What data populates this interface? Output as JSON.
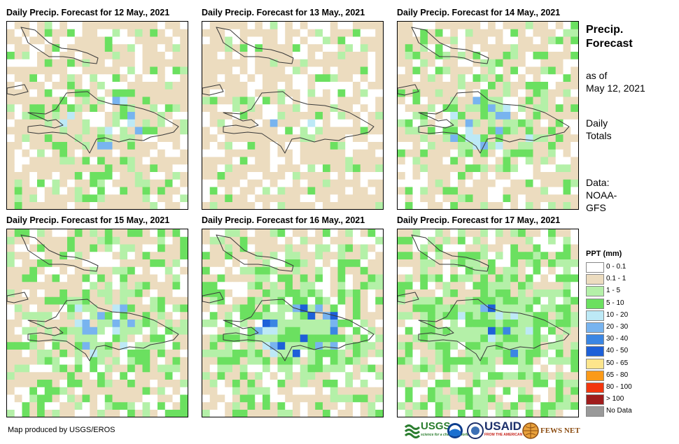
{
  "panels": [
    {
      "title": "Daily Precip. Forecast for 12 May., 2021",
      "seed": 11,
      "wet": 0.3,
      "center": 0.35
    },
    {
      "title": "Daily Precip. Forecast for 13 May., 2021",
      "seed": 23,
      "wet": 0.18,
      "center": 0.25
    },
    {
      "title": "Daily Precip. Forecast for 14 May., 2021",
      "seed": 37,
      "wet": 0.42,
      "center": 0.5
    },
    {
      "title": "Daily Precip. Forecast for 15 May., 2021",
      "seed": 41,
      "wet": 0.55,
      "center": 0.7
    },
    {
      "title": "Daily Precip. Forecast for 16 May., 2021",
      "seed": 53,
      "wet": 0.7,
      "center": 0.85
    },
    {
      "title": "Daily Precip. Forecast for 17 May., 2021",
      "seed": 67,
      "wet": 0.85,
      "center": 0.95
    }
  ],
  "side": {
    "title_line1": "Precip.",
    "title_line2": "Forecast",
    "asof_line1": "as of",
    "asof_line2": "May 12, 2021",
    "daily_line1": "Daily",
    "daily_line2": "Totals",
    "data_line1": "Data:",
    "data_line2": "NOAA-",
    "data_line3": "GFS"
  },
  "legend": {
    "title": "PPT (mm)",
    "items": [
      {
        "label": "0 - 0.1",
        "color": "#ffffff"
      },
      {
        "label": "0.1 - 1",
        "color": "#ecdcbf"
      },
      {
        "label": "1 - 5",
        "color": "#b4f0a8"
      },
      {
        "label": "5 - 10",
        "color": "#6be060"
      },
      {
        "label": "10 - 20",
        "color": "#bde9f6"
      },
      {
        "label": "20 - 30",
        "color": "#78b4ef"
      },
      {
        "label": "30 - 40",
        "color": "#3b86e3"
      },
      {
        "label": "40 - 50",
        "color": "#1e60d8"
      },
      {
        "label": "50 - 65",
        "color": "#fde58c"
      },
      {
        "label": "65 - 80",
        "color": "#fb9a19"
      },
      {
        "label": "80 - 100",
        "color": "#f2360f"
      },
      {
        "label": "> 100",
        "color": "#a01c1c"
      },
      {
        "label": "No Data",
        "color": "#999999"
      }
    ]
  },
  "credit": "Map produced by USGS/EROS",
  "logos": {
    "usgs": "USGS",
    "usgs_tag": "science for a changing world",
    "usaid": "USAID",
    "usaid_tag": "FROM THE AMERICAN PEOPLE",
    "fews": "FEWS NET"
  }
}
